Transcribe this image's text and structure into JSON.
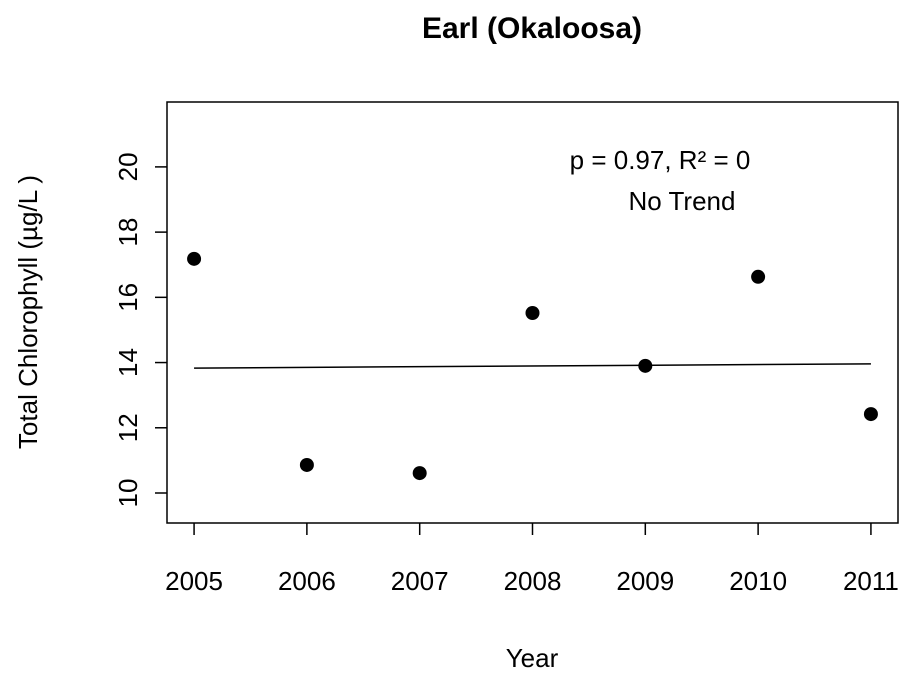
{
  "chart_data": {
    "type": "scatter",
    "title": "Earl (Okaloosa)",
    "x_label": "Year",
    "y_label": "Total Chlorophyll (µg/L )",
    "x": [
      2005,
      2006,
      2007,
      2008,
      2009,
      2010,
      2011
    ],
    "series": [
      {
        "color": "#000000",
        "values": [
          17.18,
          10.86,
          10.61,
          15.52,
          13.9,
          16.63,
          12.42
        ]
      }
    ],
    "trend_line": {
      "x": [
        2005,
        2011
      ],
      "values": [
        13.83,
        13.96
      ],
      "color": "#000000"
    },
    "annotations": [
      "p = 0.97, R² = 0",
      "No Trend"
    ],
    "xlim": [
      2004.76,
      2011.24
    ],
    "xticks": [
      2005,
      2006,
      2007,
      2008,
      2009,
      2010,
      2011
    ],
    "ylim": [
      9.08,
      21.99
    ],
    "yticks": [
      10,
      12,
      14,
      16,
      18,
      20
    ],
    "grid": false
  }
}
